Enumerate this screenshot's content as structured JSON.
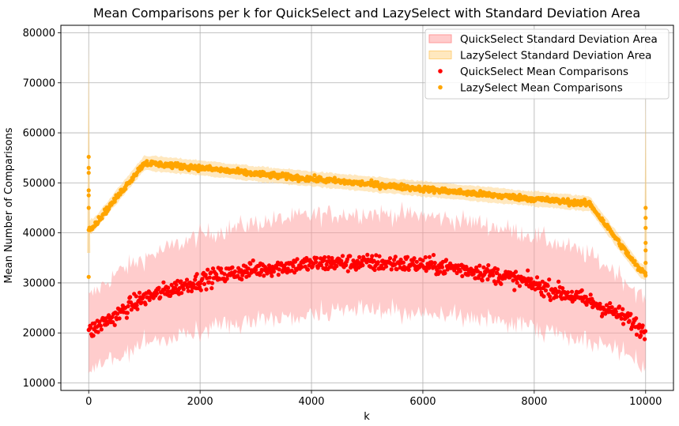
{
  "chart_data": {
    "type": "scatter",
    "title": "Mean Comparisons per k for QuickSelect and LazySelect with Standard Deviation Area",
    "xlabel": "k",
    "ylabel": "Mean Number of Comparisons",
    "xlim": [
      -500,
      10500
    ],
    "ylim": [
      8500,
      81500
    ],
    "xticks": [
      0,
      2000,
      4000,
      6000,
      8000,
      10000
    ],
    "yticks": [
      10000,
      20000,
      30000,
      40000,
      50000,
      60000,
      70000,
      80000
    ],
    "grid": true,
    "legend_position": "top-right",
    "legend": [
      {
        "label": "QuickSelect Standard Deviation Area",
        "kind": "area",
        "color": "#ff9999"
      },
      {
        "label": "LazySelect Standard Deviation Area",
        "kind": "area",
        "color": "#ffd27f"
      },
      {
        "label": "QuickSelect Mean Comparisons",
        "kind": "point",
        "color": "#ff0000"
      },
      {
        "label": "LazySelect Mean Comparisons",
        "kind": "point",
        "color": "#ffa500"
      }
    ],
    "series": [
      {
        "name": "QuickSelect Mean Comparisons",
        "color": "#ff0000",
        "x": [
          0,
          250,
          500,
          750,
          1000,
          1500,
          2000,
          2500,
          3000,
          3500,
          4000,
          4500,
          5000,
          5500,
          6000,
          6500,
          7000,
          7500,
          8000,
          8500,
          9000,
          9250,
          9500,
          9750,
          10000
        ],
        "y": [
          20000,
          22000,
          23500,
          25500,
          27000,
          28800,
          30500,
          31800,
          32700,
          33300,
          33800,
          34000,
          34000,
          33900,
          33600,
          33100,
          32300,
          31200,
          29700,
          28000,
          26300,
          25000,
          23800,
          22300,
          20000
        ],
        "spread": 1200
      },
      {
        "name": "LazySelect Mean Comparisons",
        "color": "#ffa500",
        "x": [
          0,
          100,
          1000,
          2000,
          3000,
          4000,
          5000,
          6000,
          7000,
          8000,
          9000,
          9900,
          10000
        ],
        "y": [
          41000,
          41500,
          54000,
          53000,
          51800,
          50800,
          49800,
          48800,
          47800,
          46800,
          45800,
          32500,
          32000
        ],
        "spread": 400
      },
      {
        "name": "QuickSelect Standard Deviation Area",
        "color": "#ff9999",
        "x": [
          0,
          500,
          1000,
          2000,
          3000,
          4000,
          5000,
          6000,
          7000,
          8000,
          9000,
          9500,
          10000
        ],
        "lower": [
          13000,
          15000,
          18000,
          20500,
          22500,
          24000,
          24500,
          24000,
          23000,
          21000,
          18500,
          16500,
          13000
        ],
        "upper": [
          27000,
          32000,
          35000,
          39500,
          42000,
          43500,
          44000,
          43500,
          42000,
          39500,
          35500,
          32000,
          26500
        ]
      },
      {
        "name": "LazySelect Standard Deviation Area",
        "color": "#ffd27f",
        "x": [
          0,
          100,
          1000,
          2000,
          3000,
          4000,
          5000,
          6000,
          7000,
          8000,
          9000,
          9900,
          10000
        ],
        "lower": [
          39500,
          40500,
          52500,
          51500,
          50300,
          49300,
          48300,
          47300,
          46300,
          45300,
          44300,
          31000,
          30500
        ],
        "upper": [
          42500,
          43000,
          55500,
          54500,
          53300,
          52300,
          51300,
          50300,
          49300,
          48300,
          47300,
          34000,
          33500
        ]
      }
    ],
    "outliers": [
      {
        "series": "LazySelect Mean Comparisons",
        "x": 0,
        "y": 55200
      },
      {
        "series": "LazySelect Mean Comparisons",
        "x": 0,
        "y": 53000
      },
      {
        "series": "LazySelect Mean Comparisons",
        "x": 0,
        "y": 52000
      },
      {
        "series": "LazySelect Mean Comparisons",
        "x": 0,
        "y": 48500
      },
      {
        "series": "LazySelect Mean Comparisons",
        "x": 0,
        "y": 47500
      },
      {
        "series": "LazySelect Mean Comparisons",
        "x": 0,
        "y": 45000
      },
      {
        "series": "LazySelect Mean Comparisons",
        "x": 0,
        "y": 31200
      },
      {
        "series": "LazySelect Mean Comparisons",
        "x": 10000,
        "y": 45000
      },
      {
        "series": "LazySelect Mean Comparisons",
        "x": 10000,
        "y": 43000
      },
      {
        "series": "LazySelect Mean Comparisons",
        "x": 10000,
        "y": 41000
      },
      {
        "series": "LazySelect Mean Comparisons",
        "x": 10000,
        "y": 38000
      },
      {
        "series": "LazySelect Mean Comparisons",
        "x": 10000,
        "y": 36500
      },
      {
        "series": "LazySelect Mean Comparisons",
        "x": 10000,
        "y": 34000
      },
      {
        "series": "LazySelect Mean Comparisons",
        "x": 10000,
        "y": 31500
      }
    ],
    "spikes": [
      {
        "series": "LazySelect Standard Deviation Area",
        "x": 0,
        "lower": 36000,
        "upper": 78000
      },
      {
        "series": "LazySelect Standard Deviation Area",
        "x": 10000,
        "lower": 31000,
        "upper": 68000
      }
    ]
  }
}
